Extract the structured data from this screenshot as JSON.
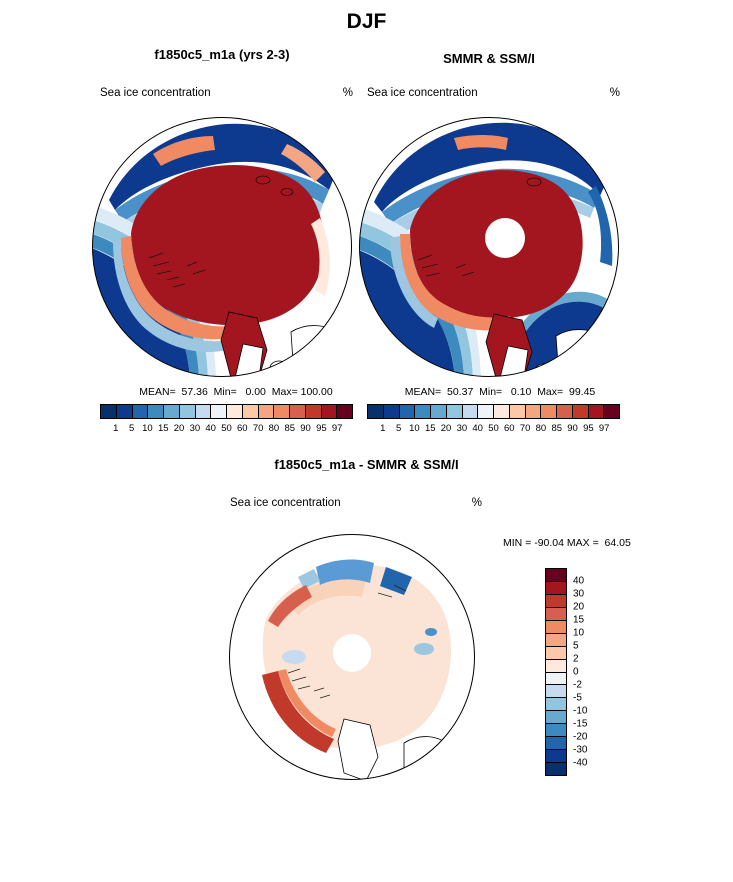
{
  "title": "DJF",
  "panels": {
    "model": {
      "title": "f1850c5_m1a (yrs 2-3)",
      "var_label": "Sea ice concentration",
      "units": "%",
      "stats_line": "MEAN=  57.36  Min=   0.00  Max= 100.00"
    },
    "obs": {
      "title": "SMMR & SSM/I",
      "var_label": "Sea ice concentration",
      "units": "%",
      "stats_line": "MEAN=  50.37  Min=   0.10  Max=  99.45"
    },
    "diff": {
      "title": "f1850c5_m1a - SMMR & SSM/I",
      "var_label": "Sea ice concentration",
      "units": "%",
      "minmax_line": "MIN = -90.04 MAX =  64.05"
    }
  },
  "conc_colorbar": {
    "ticks": [
      "1",
      "5",
      "10",
      "15",
      "20",
      "30",
      "40",
      "50",
      "60",
      "70",
      "80",
      "85",
      "90",
      "95",
      "97"
    ],
    "colors": [
      "#08306b",
      "#0d3a8f",
      "#2166ac",
      "#3c8abe",
      "#67a9cf",
      "#92c5de",
      "#c6dbef",
      "#eef3f8",
      "#fdeadd",
      "#fcc9a8",
      "#f4a582",
      "#ef8a62",
      "#d6604d",
      "#c0392b",
      "#a3161f",
      "#67001f"
    ]
  },
  "diff_colorbar": {
    "ticks": [
      "40",
      "30",
      "20",
      "15",
      "10",
      "5",
      "2",
      "0",
      "-2",
      "-5",
      "-10",
      "-15",
      "-20",
      "-30",
      "-40"
    ],
    "colors": [
      "#67001f",
      "#a3161f",
      "#c0392b",
      "#d6604d",
      "#ef8a62",
      "#f4a582",
      "#fcc9a8",
      "#fdeadd",
      "#eef3f8",
      "#c6dbef",
      "#92c5de",
      "#67a9cf",
      "#3c8abe",
      "#2166ac",
      "#0d3a8f",
      "#08306b"
    ]
  },
  "chart_data": [
    {
      "type": "heatmap",
      "panel": "model",
      "season": "DJF",
      "title": "f1850c5_m1a (yrs 2-3)",
      "variable": "Sea ice concentration",
      "units": "%",
      "projection": "north polar stereographic",
      "stats": {
        "mean": 57.36,
        "min": 0.0,
        "max": 100.0
      },
      "contour_levels": [
        1,
        5,
        10,
        15,
        20,
        30,
        40,
        50,
        60,
        70,
        80,
        85,
        90,
        95,
        97
      ],
      "colormap": "blue-white-red",
      "legend_position": "below"
    },
    {
      "type": "heatmap",
      "panel": "observations",
      "season": "DJF",
      "title": "SMMR & SSM/I",
      "variable": "Sea ice concentration",
      "units": "%",
      "projection": "north polar stereographic",
      "stats": {
        "mean": 50.37,
        "min": 0.1,
        "max": 99.45
      },
      "contour_levels": [
        1,
        5,
        10,
        15,
        20,
        30,
        40,
        50,
        60,
        70,
        80,
        85,
        90,
        95,
        97
      ],
      "colormap": "blue-white-red",
      "legend_position": "below",
      "notes": "satellite pole hole (no data) at center"
    },
    {
      "type": "heatmap",
      "panel": "difference",
      "season": "DJF",
      "title": "f1850c5_m1a - SMMR & SSM/I",
      "variable": "Sea ice concentration",
      "units": "%",
      "projection": "north polar stereographic",
      "stats": {
        "min": -90.04,
        "max": 64.05
      },
      "contour_levels": [
        -40,
        -30,
        -20,
        -15,
        -10,
        -5,
        -2,
        0,
        2,
        5,
        10,
        15,
        20,
        30,
        40
      ],
      "colormap": "red-white-blue (positive up)",
      "legend_position": "right vertical"
    }
  ]
}
